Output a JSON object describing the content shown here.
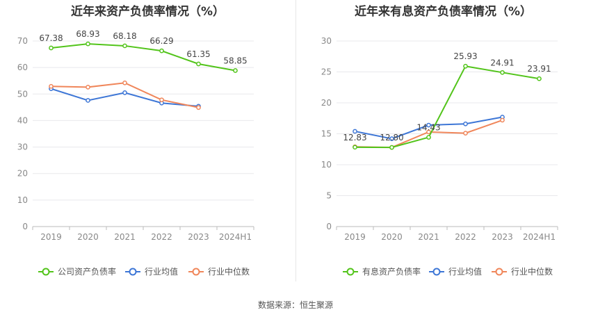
{
  "colors": {
    "main": "#52c41a",
    "avg": "#3d76d6",
    "median": "#f0865a"
  },
  "source_text": "数据来源：恒生聚源",
  "chart_data": [
    {
      "type": "line",
      "title": "近年来资产负债率情况（%）",
      "categories": [
        "2019",
        "2020",
        "2021",
        "2022",
        "2023",
        "2024H1"
      ],
      "y_ticks": [
        "0",
        "10",
        "20",
        "30",
        "40",
        "50",
        "60",
        "70"
      ],
      "ylim": [
        0,
        70
      ],
      "grid": true,
      "legend_position": "bottom",
      "series": [
        {
          "name": "公司资产负债率",
          "color": "#52c41a",
          "values": [
            67.38,
            68.93,
            68.18,
            66.29,
            61.35,
            58.85
          ],
          "labels": [
            "67.38",
            "68.93",
            "68.18",
            "66.29",
            "61.35",
            "58.85"
          ]
        },
        {
          "name": "行业均值",
          "color": "#3d76d6",
          "values": [
            52.0,
            47.6,
            50.5,
            46.6,
            45.4,
            null
          ]
        },
        {
          "name": "行业中位数",
          "color": "#f0865a",
          "values": [
            52.9,
            52.6,
            54.2,
            47.8,
            44.9,
            null
          ]
        }
      ]
    },
    {
      "type": "line",
      "title": "近年来有息资产负债率情况（%）",
      "categories": [
        "2019",
        "2020",
        "2021",
        "2022",
        "2023",
        "2024H1"
      ],
      "y_ticks": [
        "0",
        "5",
        "10",
        "15",
        "20",
        "25",
        "30"
      ],
      "ylim": [
        0,
        30
      ],
      "grid": true,
      "legend_position": "bottom",
      "series": [
        {
          "name": "有息资产负债率",
          "color": "#52c41a",
          "values": [
            12.83,
            12.8,
            14.43,
            25.93,
            24.91,
            23.91
          ],
          "labels": [
            "12.83",
            "12.80",
            "14.43",
            "25.93",
            "24.91",
            "23.91"
          ]
        },
        {
          "name": "行业均值",
          "color": "#3d76d6",
          "values": [
            15.4,
            14.2,
            16.4,
            16.6,
            17.7,
            null
          ]
        },
        {
          "name": "行业中位数",
          "color": "#f0865a",
          "values": [
            12.9,
            12.8,
            15.3,
            15.1,
            17.2,
            null
          ]
        }
      ]
    }
  ]
}
